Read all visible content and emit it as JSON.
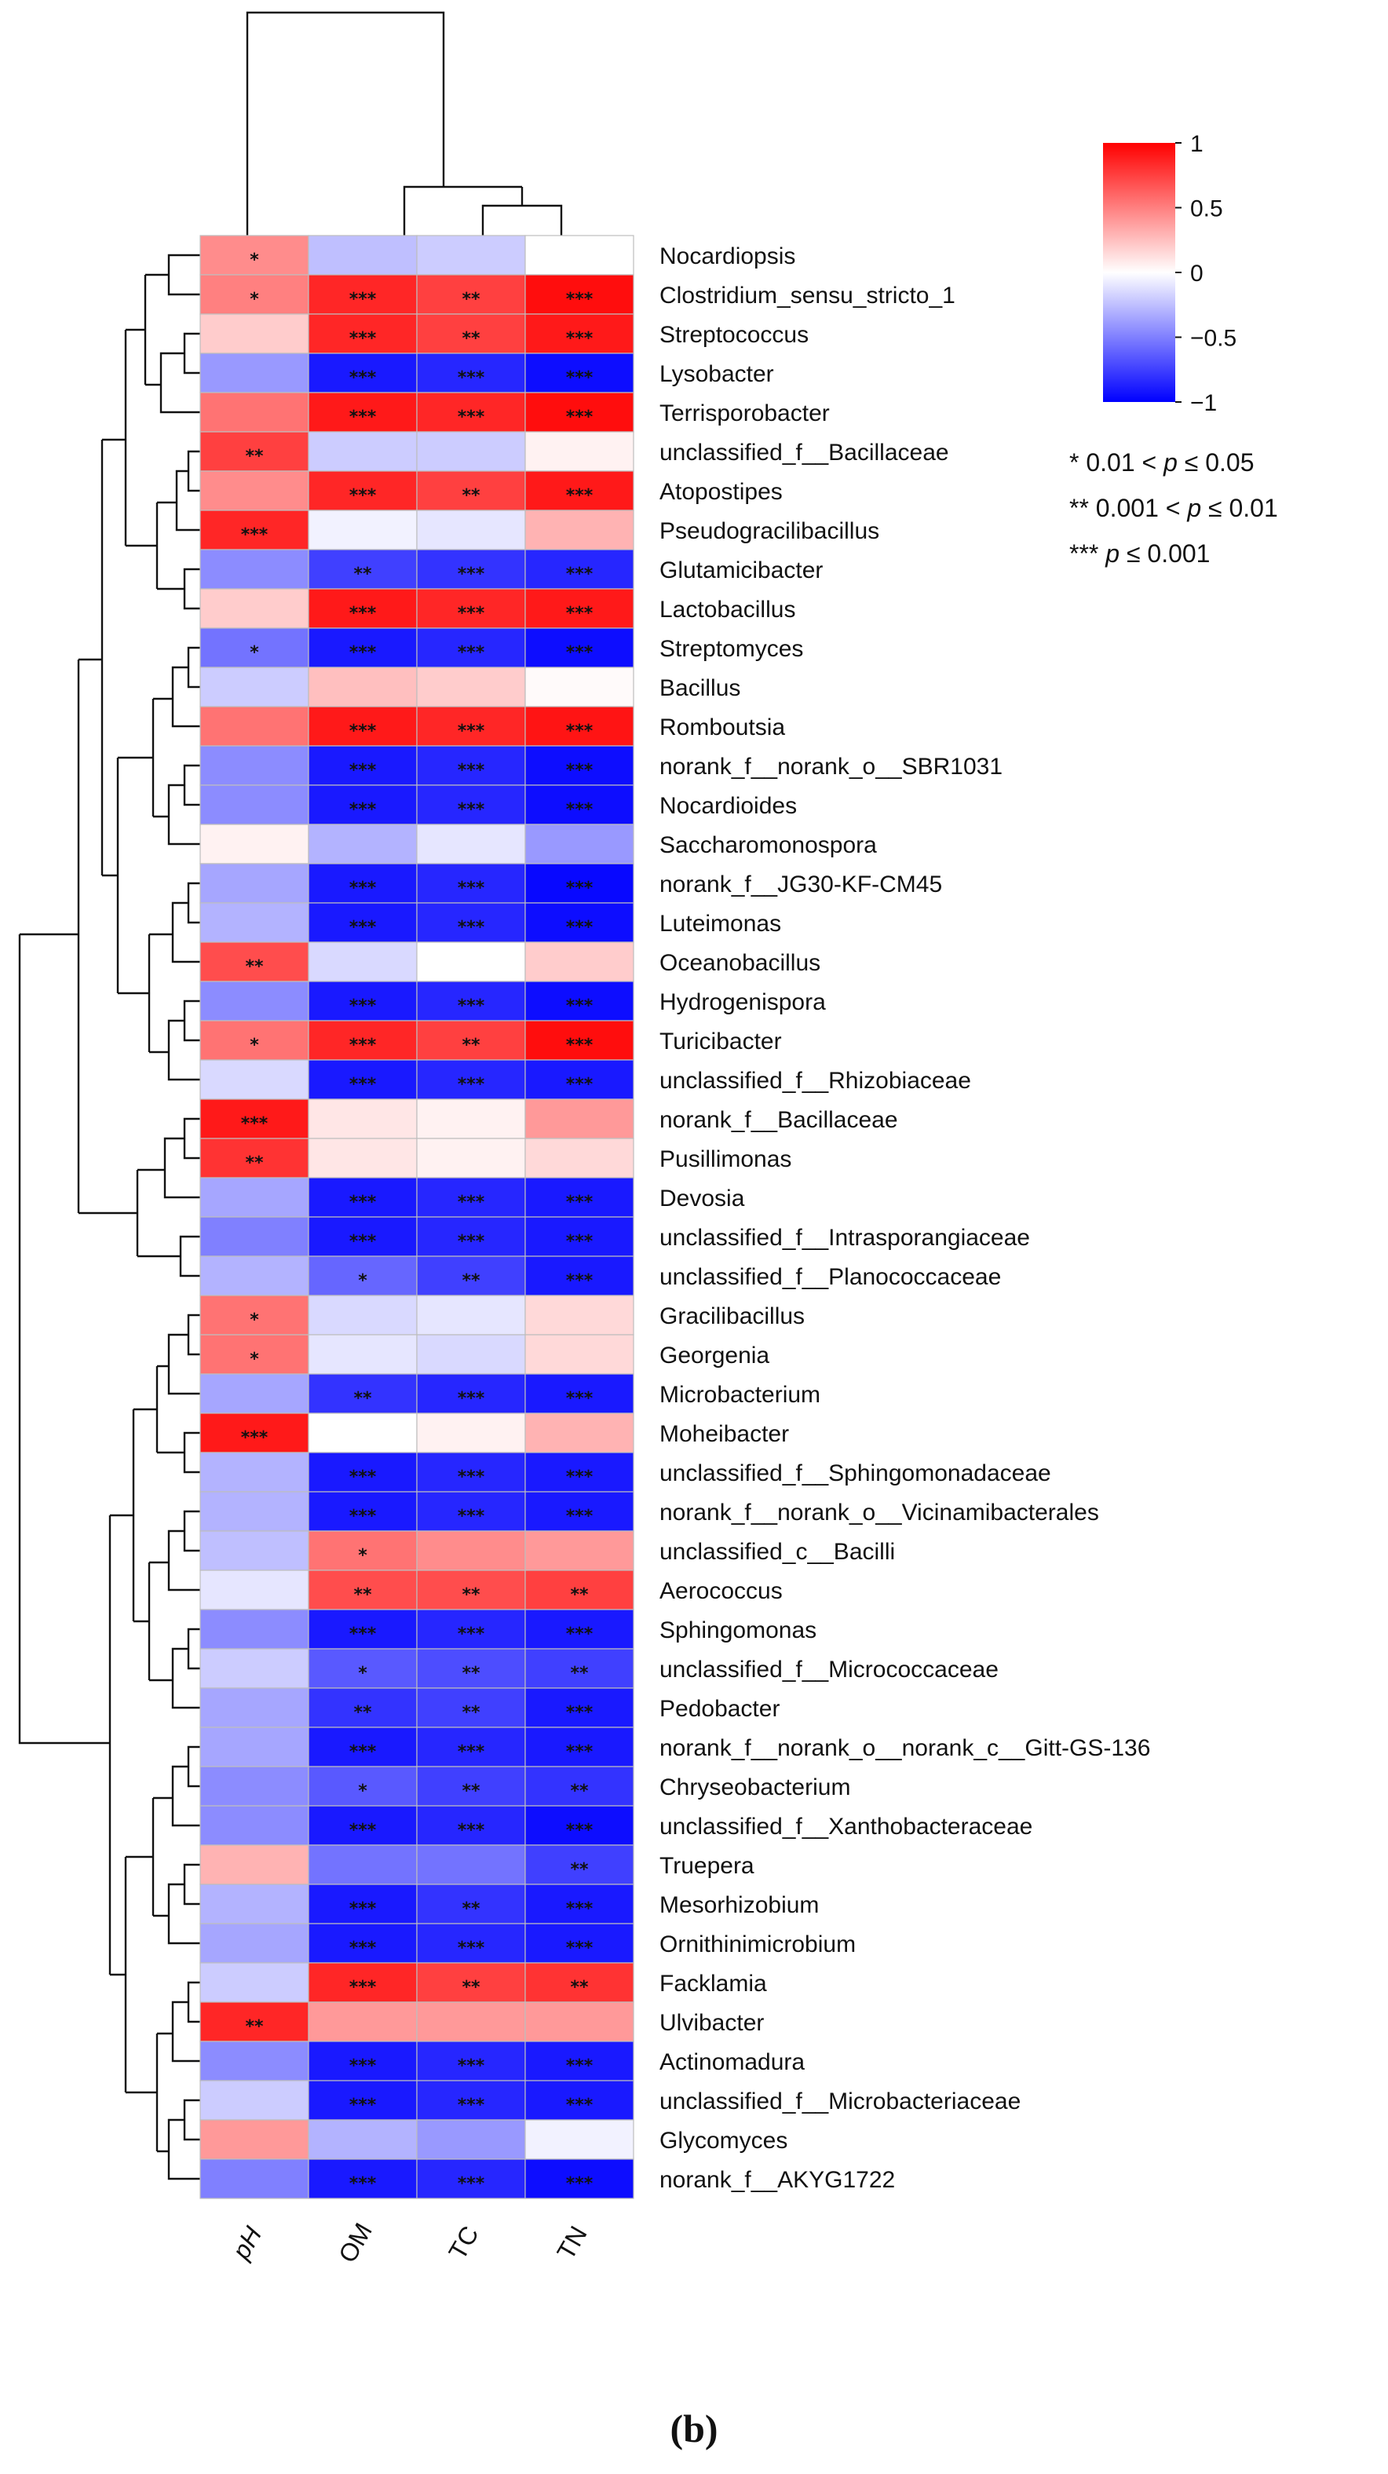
{
  "chart_data": {
    "type": "heatmap",
    "columns": [
      "pH",
      "OM",
      "TC",
      "TN"
    ],
    "rows": [
      {
        "name": "Nocardiopsis",
        "values": [
          0.45,
          -0.25,
          -0.2,
          0.0
        ],
        "sig": [
          "*",
          "",
          "",
          ""
        ]
      },
      {
        "name": "Clostridium_sensu_stricto_1",
        "values": [
          0.5,
          0.85,
          0.75,
          0.95
        ],
        "sig": [
          "*",
          "***",
          "**",
          "***"
        ]
      },
      {
        "name": "Streptococcus",
        "values": [
          0.2,
          0.85,
          0.75,
          0.9
        ],
        "sig": [
          "",
          "***",
          "**",
          "***"
        ]
      },
      {
        "name": "Lysobacter",
        "values": [
          -0.4,
          -0.9,
          -0.85,
          -0.95
        ],
        "sig": [
          "",
          "***",
          "***",
          "***"
        ]
      },
      {
        "name": "Terrisporobacter",
        "values": [
          0.55,
          0.9,
          0.85,
          0.95
        ],
        "sig": [
          "",
          "***",
          "***",
          "***"
        ]
      },
      {
        "name": "unclassified_f__Bacillaceae",
        "values": [
          0.75,
          -0.2,
          -0.2,
          0.05
        ],
        "sig": [
          "**",
          "",
          "",
          ""
        ]
      },
      {
        "name": "Atopostipes",
        "values": [
          0.45,
          0.85,
          0.75,
          0.9
        ],
        "sig": [
          "",
          "***",
          "**",
          "***"
        ]
      },
      {
        "name": "Pseudogracilibacillus",
        "values": [
          0.85,
          -0.05,
          -0.1,
          0.3
        ],
        "sig": [
          "***",
          "",
          "",
          ""
        ]
      },
      {
        "name": "Glutamicibacter",
        "values": [
          -0.45,
          -0.75,
          -0.8,
          -0.85
        ],
        "sig": [
          "",
          "**",
          "***",
          "***"
        ]
      },
      {
        "name": "Lactobacillus",
        "values": [
          0.2,
          0.9,
          0.85,
          0.9
        ],
        "sig": [
          "",
          "***",
          "***",
          "***"
        ]
      },
      {
        "name": "Streptomyces",
        "values": [
          -0.55,
          -0.9,
          -0.85,
          -0.95
        ],
        "sig": [
          "*",
          "***",
          "***",
          "***"
        ]
      },
      {
        "name": "Bacillus",
        "values": [
          -0.2,
          0.25,
          0.2,
          0.02
        ],
        "sig": [
          "",
          "",
          "",
          ""
        ]
      },
      {
        "name": "Romboutsia",
        "values": [
          0.55,
          0.9,
          0.85,
          0.92
        ],
        "sig": [
          "",
          "***",
          "***",
          "***"
        ]
      },
      {
        "name": "norank_f__norank_o__SBR1031",
        "values": [
          -0.45,
          -0.9,
          -0.85,
          -0.95
        ],
        "sig": [
          "",
          "***",
          "***",
          "***"
        ]
      },
      {
        "name": "Nocardioides",
        "values": [
          -0.45,
          -0.9,
          -0.85,
          -0.95
        ],
        "sig": [
          "",
          "***",
          "***",
          "***"
        ]
      },
      {
        "name": "Saccharomonospora",
        "values": [
          0.05,
          -0.3,
          -0.1,
          -0.4
        ],
        "sig": [
          "",
          "",
          "",
          ""
        ]
      },
      {
        "name": "norank_f__JG30-KF-CM45",
        "values": [
          -0.35,
          -0.9,
          -0.85,
          -0.97
        ],
        "sig": [
          "",
          "***",
          "***",
          "***"
        ]
      },
      {
        "name": "Luteimonas",
        "values": [
          -0.3,
          -0.9,
          -0.85,
          -0.95
        ],
        "sig": [
          "",
          "***",
          "***",
          "***"
        ]
      },
      {
        "name": "Oceanobacillus",
        "values": [
          0.7,
          -0.15,
          0.0,
          0.2
        ],
        "sig": [
          "**",
          "",
          "",
          ""
        ]
      },
      {
        "name": "Hydrogenispora",
        "values": [
          -0.45,
          -0.9,
          -0.85,
          -0.95
        ],
        "sig": [
          "",
          "***",
          "***",
          "***"
        ]
      },
      {
        "name": "Turicibacter",
        "values": [
          0.55,
          0.85,
          0.75,
          0.95
        ],
        "sig": [
          "*",
          "***",
          "**",
          "***"
        ]
      },
      {
        "name": "unclassified_f__Rhizobiaceae",
        "values": [
          -0.15,
          -0.9,
          -0.85,
          -0.9
        ],
        "sig": [
          "",
          "***",
          "***",
          "***"
        ]
      },
      {
        "name": "norank_f__Bacillaceae",
        "values": [
          0.9,
          0.1,
          0.05,
          0.4
        ],
        "sig": [
          "***",
          "",
          "",
          ""
        ]
      },
      {
        "name": "Pusillimonas",
        "values": [
          0.8,
          0.1,
          0.05,
          0.15
        ],
        "sig": [
          "**",
          "",
          "",
          ""
        ]
      },
      {
        "name": "Devosia",
        "values": [
          -0.35,
          -0.9,
          -0.85,
          -0.9
        ],
        "sig": [
          "",
          "***",
          "***",
          "***"
        ]
      },
      {
        "name": "unclassified_f__Intrasporangiaceae",
        "values": [
          -0.5,
          -0.9,
          -0.85,
          -0.9
        ],
        "sig": [
          "",
          "***",
          "***",
          "***"
        ]
      },
      {
        "name": "unclassified_f__Planococcaceae",
        "values": [
          -0.3,
          -0.6,
          -0.75,
          -0.9
        ],
        "sig": [
          "",
          "*",
          "**",
          "***"
        ]
      },
      {
        "name": "Gracilibacillus",
        "values": [
          0.55,
          -0.15,
          -0.1,
          0.15
        ],
        "sig": [
          "*",
          "",
          "",
          ""
        ]
      },
      {
        "name": "Georgenia",
        "values": [
          0.55,
          -0.1,
          -0.15,
          0.15
        ],
        "sig": [
          "*",
          "",
          "",
          ""
        ]
      },
      {
        "name": "Microbacterium",
        "values": [
          -0.35,
          -0.8,
          -0.85,
          -0.9
        ],
        "sig": [
          "",
          "**",
          "***",
          "***"
        ]
      },
      {
        "name": "Moheibacter",
        "values": [
          0.9,
          0.0,
          0.05,
          0.3
        ],
        "sig": [
          "***",
          "",
          "",
          ""
        ]
      },
      {
        "name": "unclassified_f__Sphingomonadaceae",
        "values": [
          -0.3,
          -0.9,
          -0.85,
          -0.9
        ],
        "sig": [
          "",
          "***",
          "***",
          "***"
        ]
      },
      {
        "name": "norank_f__norank_o__Vicinamibacterales",
        "values": [
          -0.3,
          -0.9,
          -0.85,
          -0.9
        ],
        "sig": [
          "",
          "***",
          "***",
          "***"
        ]
      },
      {
        "name": "unclassified_c__Bacilli",
        "values": [
          -0.25,
          0.55,
          0.45,
          0.4
        ],
        "sig": [
          "",
          "*",
          "",
          ""
        ]
      },
      {
        "name": "Aerococcus",
        "values": [
          -0.1,
          0.7,
          0.7,
          0.75
        ],
        "sig": [
          "",
          "**",
          "**",
          "**"
        ]
      },
      {
        "name": "Sphingomonas",
        "values": [
          -0.45,
          -0.9,
          -0.85,
          -0.9
        ],
        "sig": [
          "",
          "***",
          "***",
          "***"
        ]
      },
      {
        "name": "unclassified_f__Micrococcaceae",
        "values": [
          -0.2,
          -0.65,
          -0.7,
          -0.75
        ],
        "sig": [
          "",
          "*",
          "**",
          "**"
        ]
      },
      {
        "name": "Pedobacter",
        "values": [
          -0.35,
          -0.8,
          -0.75,
          -0.9
        ],
        "sig": [
          "",
          "**",
          "**",
          "***"
        ]
      },
      {
        "name": "norank_f__norank_o__norank_c__Gitt-GS-136",
        "values": [
          -0.35,
          -0.9,
          -0.85,
          -0.9
        ],
        "sig": [
          "",
          "***",
          "***",
          "***"
        ]
      },
      {
        "name": "Chryseobacterium",
        "values": [
          -0.45,
          -0.65,
          -0.75,
          -0.8
        ],
        "sig": [
          "",
          "*",
          "**",
          "**"
        ]
      },
      {
        "name": "unclassified_f__Xanthobacteraceae",
        "values": [
          -0.45,
          -0.9,
          -0.85,
          -0.95
        ],
        "sig": [
          "",
          "***",
          "***",
          "***"
        ]
      },
      {
        "name": "Truepera",
        "values": [
          0.3,
          -0.55,
          -0.55,
          -0.75
        ],
        "sig": [
          "",
          "",
          "",
          "**"
        ]
      },
      {
        "name": "Mesorhizobium",
        "values": [
          -0.3,
          -0.9,
          -0.8,
          -0.9
        ],
        "sig": [
          "",
          "***",
          "**",
          "***"
        ]
      },
      {
        "name": "Ornithinimicrobium",
        "values": [
          -0.35,
          -0.9,
          -0.85,
          -0.9
        ],
        "sig": [
          "",
          "***",
          "***",
          "***"
        ]
      },
      {
        "name": "Facklamia",
        "values": [
          -0.2,
          0.85,
          0.75,
          0.8
        ],
        "sig": [
          "",
          "***",
          "**",
          "**"
        ]
      },
      {
        "name": "Ulvibacter",
        "values": [
          0.85,
          0.4,
          0.4,
          0.4
        ],
        "sig": [
          "**",
          "",
          "",
          ""
        ]
      },
      {
        "name": "Actinomadura",
        "values": [
          -0.45,
          -0.9,
          -0.85,
          -0.9
        ],
        "sig": [
          "",
          "***",
          "***",
          "***"
        ]
      },
      {
        "name": "unclassified_f__Microbacteriaceae",
        "values": [
          -0.2,
          -0.9,
          -0.85,
          -0.9
        ],
        "sig": [
          "",
          "***",
          "***",
          "***"
        ]
      },
      {
        "name": "Glycomyces",
        "values": [
          0.4,
          -0.3,
          -0.4,
          -0.05
        ],
        "sig": [
          "",
          "",
          "",
          ""
        ]
      },
      {
        "name": "norank_f__AKYG1722",
        "values": [
          -0.5,
          -0.9,
          -0.85,
          -0.95
        ],
        "sig": [
          "",
          "***",
          "***",
          "***"
        ]
      }
    ],
    "color_scale": {
      "min": -1,
      "max": 1,
      "low_color": "#0000ff",
      "mid_color": "#ffffff",
      "high_color": "#ff0000",
      "ticks": [
        "1",
        "0.5",
        "0",
        "−0.5",
        "−1"
      ]
    },
    "significance_legend": [
      {
        "stars": "*",
        "pre": "0.01 <",
        "p": "p",
        "post": "≤ 0.05"
      },
      {
        "stars": "**",
        "pre": "0.001 <",
        "p": "p",
        "post": "≤ 0.01"
      },
      {
        "stars": "***",
        "pre": "",
        "p": "p",
        "post": "≤ 0.001"
      }
    ],
    "panel_label": "(b)"
  }
}
